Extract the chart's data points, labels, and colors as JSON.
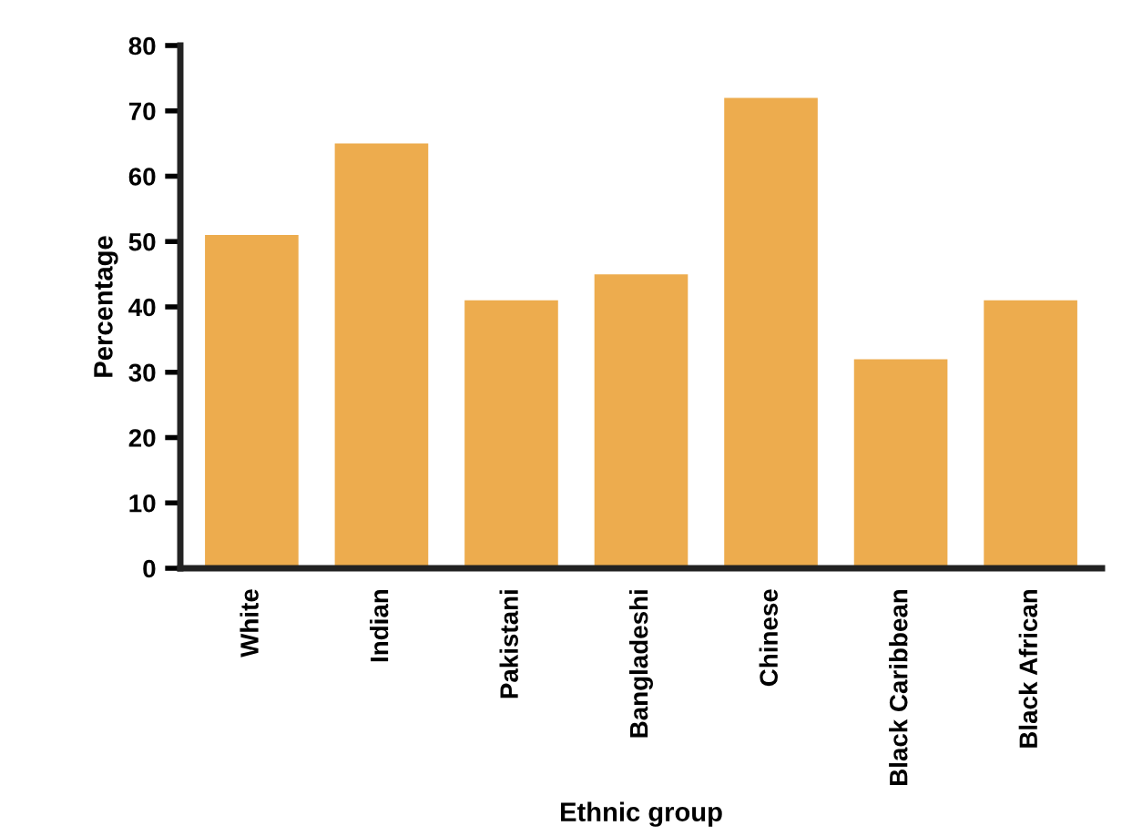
{
  "chart_data": {
    "type": "bar",
    "xlabel": "Ethnic group",
    "ylabel": "Percentage",
    "categories": [
      "White",
      "Indian",
      "Pakistani",
      "Bangladeshi",
      "Chinese",
      "Black Caribbean",
      "Black African"
    ],
    "values": [
      51,
      65,
      41,
      45,
      72,
      32,
      41
    ],
    "color": "#edac4e",
    "ylim": [
      0,
      80
    ],
    "yticks": [
      0,
      10,
      20,
      30,
      40,
      50,
      60,
      70,
      80
    ],
    "grid": false,
    "legend": false
  }
}
